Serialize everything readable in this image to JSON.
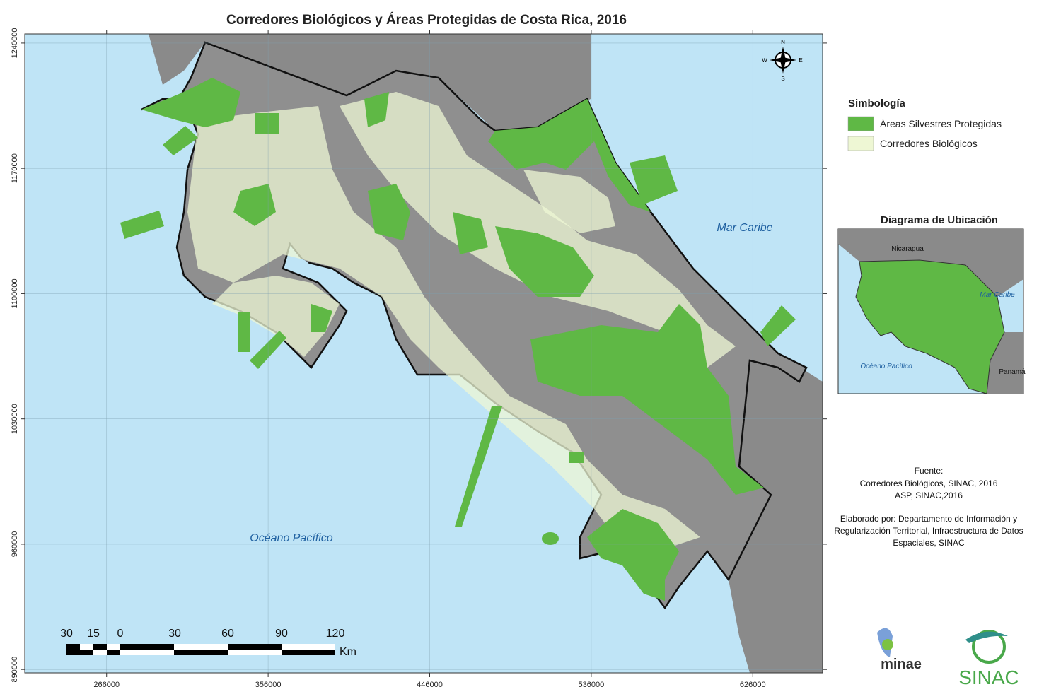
{
  "title": "Corredores Biológicos y Áreas Protegidas de Costa Rica, 2016",
  "map_frame": {
    "xlim": [
      220400,
      664900
    ],
    "ylim": [
      888100,
      1245100
    ],
    "xticks": [
      266000,
      356000,
      446000,
      536000,
      626000
    ],
    "yticks": [
      890000,
      960000,
      1030000,
      1100000,
      1170000,
      1240000
    ]
  },
  "map_labels": [
    "Mar Caribe",
    "Océano Pacífico"
  ],
  "compass": {
    "north": "N",
    "east": "E",
    "south": "S",
    "west": "W"
  },
  "scale_bar": {
    "labels": [
      30,
      15,
      0,
      30,
      60,
      90,
      120
    ],
    "unit": "Km"
  },
  "legend": {
    "title": "Simbología",
    "items": [
      {
        "label": "Áreas Silvestres Protegidas",
        "color": "#5fb845"
      },
      {
        "label": "Corredores Biológicos",
        "color": "#eef7d4"
      }
    ]
  },
  "inset": {
    "title": "Diagrama de Ubicación",
    "labels": [
      "Nicaragua",
      "Mar Caribe",
      "Océano Pacífico",
      "Panamá"
    ]
  },
  "source": {
    "heading": "Fuente:",
    "lines": [
      "Corredores Biológicos, SINAC, 2016",
      "ASP, SINAC,2016"
    ]
  },
  "credits": {
    "lines": [
      "Elaborado por: Departamento de Información y",
      "Regularización Territorial, Infraestructura de Datos",
      "Espaciales, SINAC"
    ]
  },
  "logos": [
    "minae",
    "SINAC"
  ]
}
